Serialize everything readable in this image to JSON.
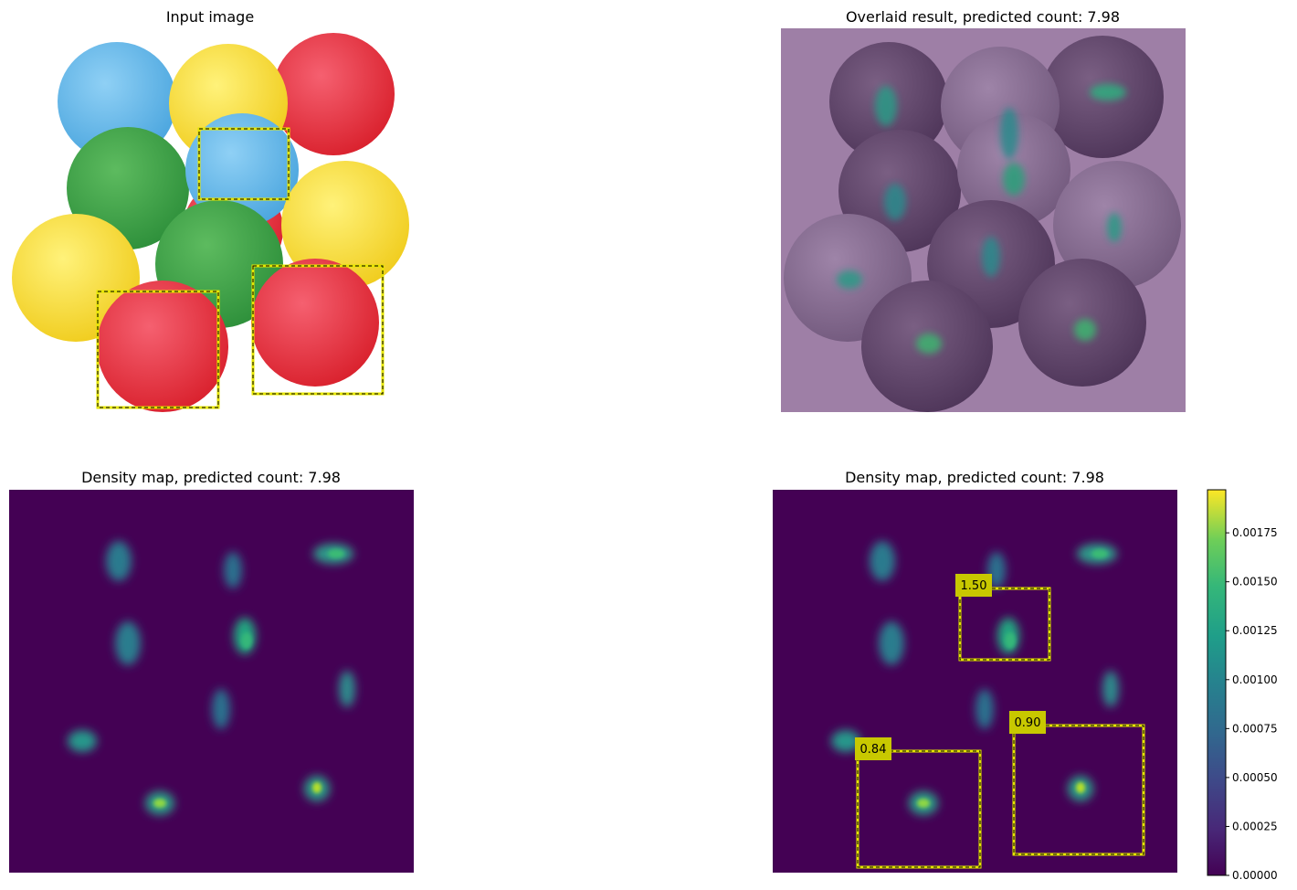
{
  "panels": {
    "input": {
      "title": "Input image"
    },
    "overlay": {
      "title": "Overlaid result, predicted count: 7.98"
    },
    "density": {
      "title": "Density map, predicted count: 7.98"
    },
    "density_boxes": {
      "title": "Density map, predicted count: 7.98"
    }
  },
  "colors": {
    "viridis_low": "#440154",
    "viridis_mid": "#21918c",
    "viridis_high": "#fde725",
    "box_yellow": "#c8c800",
    "overlay_tint": "#9e7fa6"
  },
  "chart_data": [
    {
      "type": "heatmap",
      "title": "Density map, predicted count: 7.98",
      "predicted_count": 7.98,
      "colorbar": {
        "min": 0.0,
        "max": 0.00197,
        "ticks": [
          "0.00000",
          "0.00025",
          "0.00050",
          "0.00075",
          "0.00100",
          "0.00125",
          "0.00150",
          "0.00175"
        ],
        "tick_values": [
          0,
          0.00025,
          0.0005,
          0.00075,
          0.001,
          0.00125,
          0.0015,
          0.00175
        ]
      },
      "box_labels": [
        "1.50",
        "0.84",
        "0.90"
      ],
      "box_counts": [
        1.5,
        0.84,
        0.9
      ]
    }
  ]
}
